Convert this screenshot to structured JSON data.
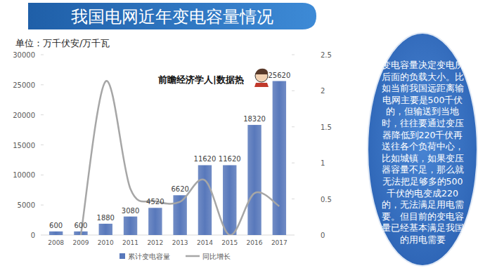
{
  "chart_data": {
    "type": "bar",
    "title": "我国电网近年变电容量情况",
    "y_label": "单位：万千伏安/万千瓦",
    "annotation": "前瞻经济学人|数据热",
    "note_lines": [
      "变电容量决定变电所",
      "后面的负载大小。比",
      "如当前我国远距离输",
      "电网主要是500千伏",
      "的，但输送到当地",
      "时，往往要通过变压",
      "器降低到220千伏再",
      "送往各个负荷中心，",
      "比如城镇，如果变压",
      "器容量不足，那么就",
      "无法把足够多的500",
      "千伏的电变成220",
      "的，无法满足用电需",
      "要。但目前的变电容",
      "量已经基本满足我国",
      "的用电需要"
    ],
    "categories": [
      "2008",
      "2009",
      "2010",
      "2011",
      "2012",
      "2013",
      "2014",
      "2015",
      "2016",
      "2017"
    ],
    "series": [
      {
        "name": "累计变电容量",
        "type": "bar",
        "color": "#5878bb",
        "axis": "y",
        "values": [
          600,
          600,
          1880,
          3080,
          4520,
          6620,
          11620,
          11620,
          18320,
          25620
        ]
      },
      {
        "name": "同比增长",
        "type": "line",
        "color": "#a6a6a6",
        "axis": "y2",
        "line_style": "smooth",
        "values": [
          null,
          0,
          2.13,
          0.64,
          0.47,
          0.46,
          0.76,
          0,
          0.58,
          0.4
        ]
      }
    ],
    "ylim": [
      0,
      30000
    ],
    "yticks": [
      0,
      5000,
      10000,
      15000,
      20000,
      25000,
      30000
    ],
    "y2lim": [
      0,
      2.5
    ],
    "y2ticks": [
      0,
      0.5,
      1,
      1.5,
      2,
      2.5
    ],
    "grid": false,
    "data_labels": true,
    "legend": "bottom"
  }
}
